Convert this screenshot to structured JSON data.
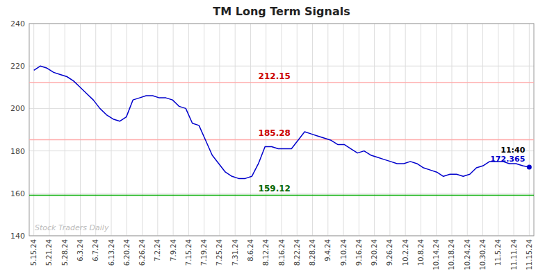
{
  "chart_data": {
    "type": "line",
    "title": "TM Long Term Signals",
    "x": [
      0,
      0.4267,
      0.8533,
      1.28,
      1.7067,
      2.1333,
      2.56,
      2.9867,
      3.4133,
      3.84,
      4.2667,
      4.6933,
      5.12,
      5.5467,
      5.9733,
      6.4,
      6.8267,
      7.2533,
      7.68,
      8.1067,
      8.5333,
      8.96,
      9.3867,
      9.8133,
      10.24,
      10.6667,
      11.0933,
      11.52,
      11.9467,
      12.3733,
      12.8,
      13.2267,
      13.6533,
      14.08,
      14.5067,
      14.9333,
      15.36,
      15.7867,
      16.2133,
      16.64,
      17.0667,
      17.4933,
      17.92,
      18.3467,
      18.7733,
      19.2,
      19.6267,
      20.0533,
      20.48,
      20.9067,
      21.3333,
      21.76,
      22.1867,
      22.6133,
      23.04,
      23.4667,
      23.8933,
      24.32,
      24.7467,
      25.1733,
      25.6,
      26.0267,
      26.4533,
      26.88,
      27.3067,
      27.7333,
      28.16,
      28.5867,
      29.0133,
      29.44,
      29.8667,
      30.2933,
      30.72,
      31.1467,
      31.5733,
      32
    ],
    "values": [
      218,
      220,
      219,
      217,
      216,
      215,
      213,
      210,
      207,
      204,
      200,
      197,
      195,
      194,
      196,
      204,
      205,
      206,
      206,
      205,
      205,
      204,
      201,
      200,
      193,
      192,
      185,
      178,
      174,
      170,
      168,
      167,
      167,
      168,
      174,
      182,
      182,
      181,
      181,
      181,
      185,
      189,
      188,
      187,
      186,
      185,
      183,
      183,
      181,
      179,
      180,
      178,
      177,
      176,
      175,
      174,
      174,
      175,
      174,
      172,
      171,
      170,
      168,
      169,
      169,
      168,
      169,
      172,
      173,
      175,
      175,
      175,
      174,
      174,
      173,
      172.365
    ],
    "color": "#0000cc",
    "xlim": [
      -0.3,
      32.3
    ],
    "xticks": [
      {
        "value": 0,
        "label": "5.15.24"
      },
      {
        "value": 1,
        "label": "5.21.24"
      },
      {
        "value": 2,
        "label": "5.28.24"
      },
      {
        "value": 3,
        "label": "6.3.24"
      },
      {
        "value": 4,
        "label": "6.7.24"
      },
      {
        "value": 5,
        "label": "6.13.24"
      },
      {
        "value": 6,
        "label": "6.20.24"
      },
      {
        "value": 7,
        "label": "6.26.24"
      },
      {
        "value": 8,
        "label": "7.2.24"
      },
      {
        "value": 9,
        "label": "7.9.24"
      },
      {
        "value": 10,
        "label": "7.15.24"
      },
      {
        "value": 11,
        "label": "7.19.24"
      },
      {
        "value": 12,
        "label": "7.25.24"
      },
      {
        "value": 13,
        "label": "7.31.24"
      },
      {
        "value": 14,
        "label": "8.6.24"
      },
      {
        "value": 15,
        "label": "8.12.24"
      },
      {
        "value": 16,
        "label": "8.16.24"
      },
      {
        "value": 17,
        "label": "8.22.24"
      },
      {
        "value": 18,
        "label": "8.28.24"
      },
      {
        "value": 19,
        "label": "9.4.24"
      },
      {
        "value": 20,
        "label": "9.10.24"
      },
      {
        "value": 21,
        "label": "9.16.24"
      },
      {
        "value": 22,
        "label": "9.20.24"
      },
      {
        "value": 23,
        "label": "9.26.24"
      },
      {
        "value": 24,
        "label": "10.2.24"
      },
      {
        "value": 25,
        "label": "10.8.24"
      },
      {
        "value": 26,
        "label": "10.14.24"
      },
      {
        "value": 27,
        "label": "10.18.24"
      },
      {
        "value": 28,
        "label": "10.24.24"
      },
      {
        "value": 29,
        "label": "10.30.24"
      },
      {
        "value": 30,
        "label": "11.5.24"
      },
      {
        "value": 31,
        "label": "11.11.24"
      },
      {
        "value": 32,
        "label": "11.15.24"
      }
    ],
    "ylim": [
      140,
      240
    ],
    "yticks": [
      140,
      160,
      180,
      200,
      220,
      240
    ],
    "grid": true,
    "reference_lines": [
      {
        "value": 212.15,
        "label": "212.15",
        "color": "#ffaaaa",
        "label_color": "#cc0000"
      },
      {
        "value": 185.28,
        "label": "185.28",
        "color": "#ffaaaa",
        "label_color": "#cc0000"
      },
      {
        "value": 159.12,
        "label": "159.12",
        "color": "#00aa00",
        "label_color": "#006600"
      }
    ],
    "annotations": [
      {
        "text": "11:40",
        "color": "#000000"
      },
      {
        "text": "172.365",
        "color": "#0000cc"
      }
    ],
    "watermark": "Stock Traders Daily"
  }
}
